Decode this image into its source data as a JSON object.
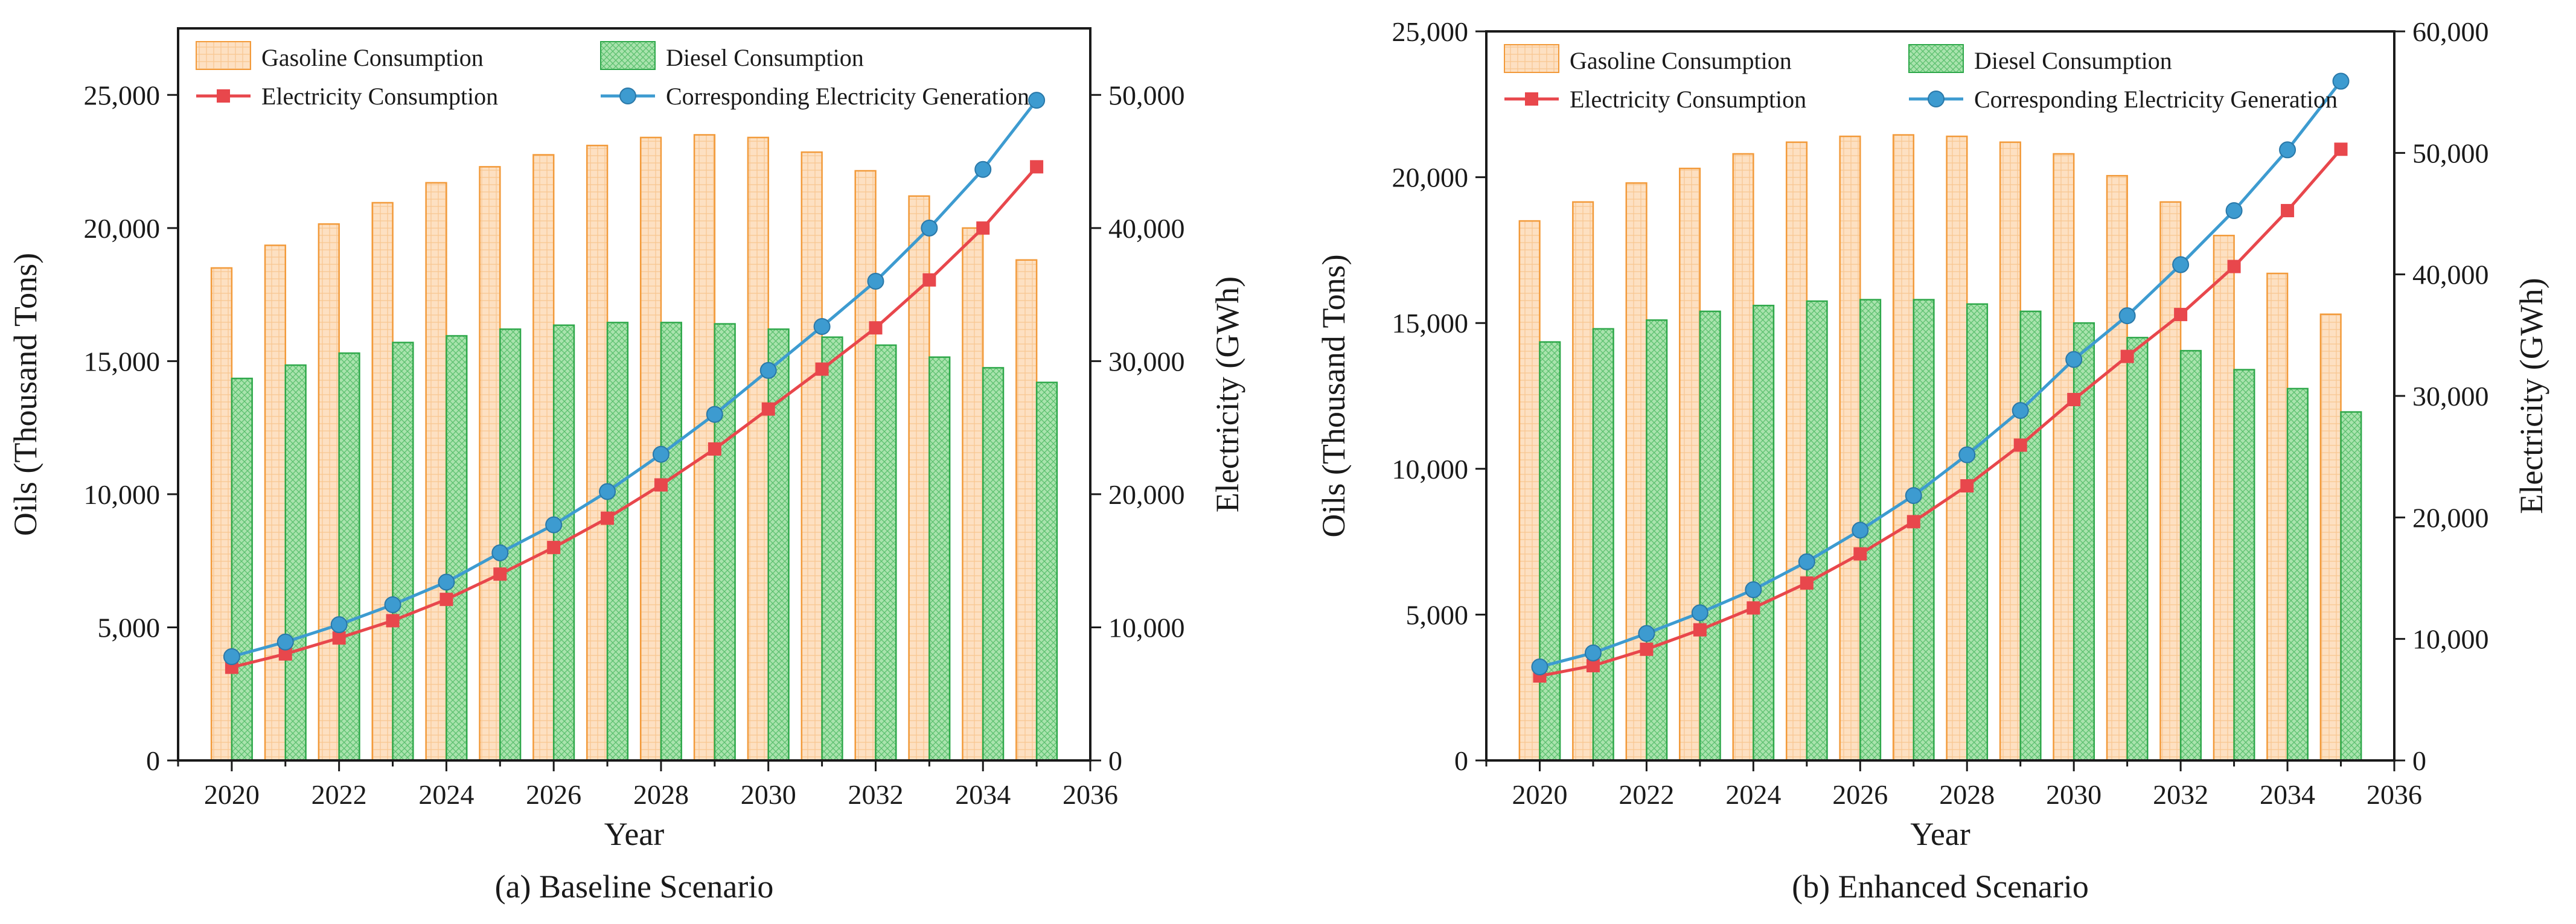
{
  "figure": {
    "domain": "Chart",
    "colors": {
      "gasoline_fill": "#fde0c2",
      "gasoline_edge": "#f29a3a",
      "diesel_fill": "#a9e3ad",
      "diesel_edge": "#2ea84a",
      "electricity": "#e8474c",
      "generation": "#3d9bd0",
      "axis": "#1a1a1a"
    }
  },
  "chart_data": [
    {
      "type": "bar",
      "caption": "(a) Baseline Scenario",
      "xlabel": "Year",
      "ylabel": "Oils (Thousand Tons)",
      "y2label": "Electricity (GWh)",
      "xlim": [
        2019,
        2036
      ],
      "ylim": [
        0,
        27500
      ],
      "y2lim": [
        0,
        55000
      ],
      "x_ticks": [
        2020,
        2022,
        2024,
        2026,
        2028,
        2030,
        2032,
        2034,
        2036
      ],
      "x_tick_labels": [
        "2020",
        "2022",
        "2024",
        "2026",
        "2028",
        "2030",
        "2032",
        "2034",
        "2036"
      ],
      "y_ticks": [
        0,
        5000,
        10000,
        15000,
        20000,
        25000
      ],
      "y_tick_labels": [
        "0",
        "5,000",
        "10,000",
        "15,000",
        "20,000",
        "25,000"
      ],
      "y2_ticks": [
        0,
        10000,
        20000,
        30000,
        40000,
        50000
      ],
      "y2_tick_labels": [
        "0",
        "10,000",
        "20,000",
        "30,000",
        "40,000",
        "50,000"
      ],
      "categories": [
        2020,
        2021,
        2022,
        2023,
        2024,
        2025,
        2026,
        2027,
        2028,
        2029,
        2030,
        2031,
        2032,
        2033,
        2034,
        2035
      ],
      "legend": [
        "Gasoline Consumption",
        "Diesel Consumption",
        "Electricity Consumption",
        "Corresponding Electricity Generation"
      ],
      "series": [
        {
          "name": "Gasoline Consumption",
          "kind": "bar",
          "axis": "left",
          "values": [
            18500,
            19350,
            20150,
            20950,
            21700,
            22300,
            22750,
            23100,
            23400,
            23500,
            23400,
            22850,
            22150,
            21200,
            20000,
            18800
          ]
        },
        {
          "name": "Diesel Consumption",
          "kind": "bar",
          "axis": "left",
          "values": [
            14350,
            14850,
            15300,
            15700,
            15950,
            16200,
            16350,
            16450,
            16450,
            16400,
            16200,
            15900,
            15600,
            15150,
            14750,
            14200
          ]
        },
        {
          "name": "Electricity Consumption",
          "kind": "line",
          "marker": "square",
          "axis": "right",
          "values": [
            7000,
            8000,
            9200,
            10500,
            12100,
            14000,
            16000,
            18200,
            20700,
            23400,
            26400,
            29400,
            32500,
            36100,
            40000,
            44600
          ]
        },
        {
          "name": "Corresponding Electricity Generation",
          "kind": "line",
          "marker": "circle",
          "axis": "right",
          "values": [
            7800,
            8900,
            10200,
            11700,
            13400,
            15600,
            17700,
            20200,
            23000,
            26000,
            29300,
            32600,
            36000,
            40000,
            44400,
            49600
          ]
        }
      ]
    },
    {
      "type": "bar",
      "caption": "(b) Enhanced Scenario",
      "xlabel": "Year",
      "ylabel": "Oils (Thousand Tons)",
      "y2label": "Electricity (GWh)",
      "xlim": [
        2019,
        2036
      ],
      "ylim": [
        0,
        25000
      ],
      "y2lim": [
        0,
        60000
      ],
      "x_ticks": [
        2020,
        2022,
        2024,
        2026,
        2028,
        2030,
        2032,
        2034,
        2036
      ],
      "x_tick_labels": [
        "2020",
        "2022",
        "2024",
        "2026",
        "2028",
        "2030",
        "2032",
        "2034",
        "2036"
      ],
      "y_ticks": [
        0,
        5000,
        10000,
        15000,
        20000,
        25000
      ],
      "y_tick_labels": [
        "0",
        "5,000",
        "10,000",
        "15,000",
        "20,000",
        "25,000"
      ],
      "y2_ticks": [
        0,
        10000,
        20000,
        30000,
        40000,
        50000,
        60000
      ],
      "y2_tick_labels": [
        "0",
        "10,000",
        "20,000",
        "30,000",
        "40,000",
        "50,000",
        "60,000"
      ],
      "categories": [
        2020,
        2021,
        2022,
        2023,
        2024,
        2025,
        2026,
        2027,
        2028,
        2029,
        2030,
        2031,
        2032,
        2033,
        2034,
        2035
      ],
      "legend": [
        "Gasoline Consumption",
        "Diesel Consumption",
        "Electricity Consumption",
        "Corresponding Electricity Generation"
      ],
      "series": [
        {
          "name": "Gasoline Consumption",
          "kind": "bar",
          "axis": "left",
          "values": [
            18500,
            19150,
            19800,
            20300,
            20800,
            21200,
            21400,
            21450,
            21400,
            21200,
            20800,
            20050,
            19150,
            18000,
            16700,
            15300
          ]
        },
        {
          "name": "Diesel Consumption",
          "kind": "bar",
          "axis": "left",
          "values": [
            14350,
            14800,
            15100,
            15400,
            15600,
            15750,
            15800,
            15800,
            15650,
            15400,
            15000,
            14500,
            14050,
            13400,
            12750,
            11950
          ]
        },
        {
          "name": "Electricity Consumption",
          "kind": "line",
          "marker": "square",
          "axis": "right",
          "values": [
            6950,
            7800,
            9150,
            10750,
            12550,
            14600,
            17000,
            19650,
            22600,
            25950,
            29700,
            33250,
            36700,
            40650,
            45250,
            50300
          ]
        },
        {
          "name": "Corresponding Electricity Generation",
          "kind": "line",
          "marker": "circle",
          "axis": "right",
          "values": [
            7700,
            8850,
            10450,
            12150,
            14050,
            16350,
            18950,
            21800,
            25150,
            28800,
            33000,
            36600,
            40800,
            45250,
            50250,
            55900
          ]
        }
      ]
    }
  ]
}
